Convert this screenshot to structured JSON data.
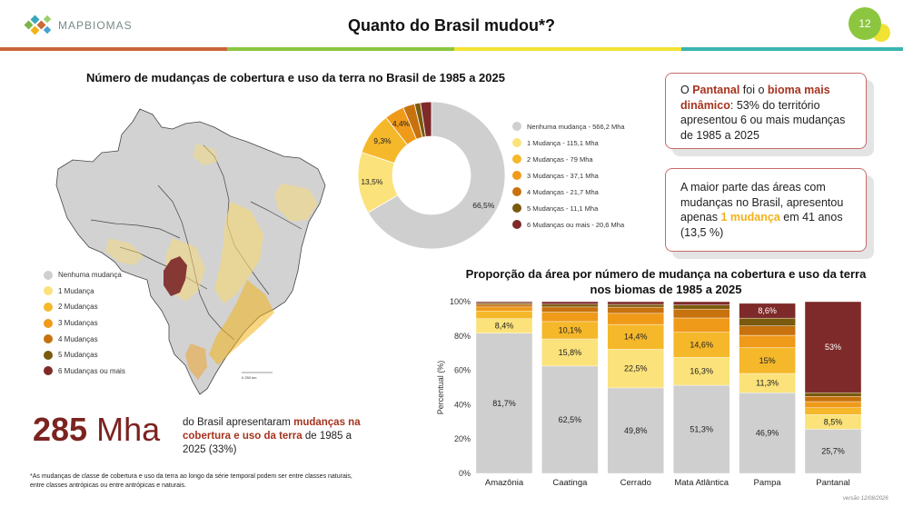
{
  "header": {
    "logo_text": "MAPBIOMAS",
    "title": "Quanto do Brasil mudou*?",
    "page_number": "12"
  },
  "colors": {
    "accent_dark_red": "#7b2320",
    "highlight_red": "#a6331e",
    "highlight_yellow": "#f2b21a",
    "category_colors": [
      "#cfcfcf",
      "#fbe27a",
      "#f5b82a",
      "#f09a1a",
      "#c7720e",
      "#7a5a0c",
      "#7e2a2a"
    ]
  },
  "map": {
    "title": "Número de mudanças de cobertura e uso da terra no Brasil de 1985 a 2025",
    "legend": [
      "Nenhuma mudança",
      "1 Mudança",
      "2 Mudanças",
      "3 Mudanças",
      "4 Mudanças",
      "5 Mudanças",
      "6 Mudanças ou mais"
    ],
    "scale_label": "0 250 km"
  },
  "highlight": {
    "number": "285",
    "unit": "Mha",
    "text_before": "do Brasil apresentaram ",
    "text_highlight": "mudanças na cobertura e uso da terra",
    "text_after": " de 1985 a 2025 (33%)"
  },
  "footnote": "*As mudanças de classe de cobertura e uso da terra ao longo da série temporal podem ser entre classes naturais, entre classes antrópicas ou entre antrópicas e naturais.",
  "callouts": {
    "c1": {
      "a": "O ",
      "b": "Pantanal",
      "c": " foi o ",
      "d": "bioma mais dinâmico",
      "e": ": 53% do território apresentou 6 ou mais mudanças de 1985 a 2025"
    },
    "c2": {
      "a": "A maior parte das áreas com mudanças no Brasil, apresentou apenas ",
      "b": "1 mudança",
      "c": " em 41 anos (13,5 %)"
    }
  },
  "chart_data": [
    {
      "type": "pie",
      "title": "",
      "categories": [
        "Nenhuma mudança",
        "1 Mudança",
        "2 Mudanças",
        "3 Mudanças",
        "4 Mudanças",
        "5 Mudanças",
        "6 Mudanças ou mais"
      ],
      "legend_labels": [
        "Nenhuma mudança - 566,2 Mha",
        "1 Mudança - 115,1 Mha",
        "2 Mudanças - 79 Mha",
        "3 Mudanças - 37,1 Mha",
        "4 Mudanças - 21,7 Mha",
        "5 Mudanças - 11,1 Mha",
        "6 Mudanças ou mais - 20,6 Mha"
      ],
      "values": [
        566.2,
        115.1,
        79,
        37.1,
        21.7,
        11.1,
        20.6
      ],
      "slice_labels": [
        "66,5%",
        "13,5%",
        "9,3%",
        "4,4%",
        "",
        "",
        ""
      ],
      "legend_position": "right"
    },
    {
      "type": "bar",
      "stacked": true,
      "title": "Proporção da área por número de mudança na cobertura e uso da terra nos biomas de 1985 a 2025",
      "ylabel": "Percentual (%)",
      "ylim": [
        0,
        100
      ],
      "yticks": [
        "0%",
        "20%",
        "40%",
        "60%",
        "80%",
        "100%"
      ],
      "categories": [
        "Amazônia",
        "Caatinga",
        "Cerrado",
        "Mata Atlântica",
        "Pampa",
        "Pantanal"
      ],
      "series": [
        {
          "name": "Nenhuma mudança",
          "values": [
            81.7,
            62.5,
            49.8,
            51.3,
            46.9,
            25.7
          ],
          "labels": [
            "81,7%",
            "62,5%",
            "49,8%",
            "51,3%",
            "46,9%",
            "25,7%"
          ]
        },
        {
          "name": "1 Mudança",
          "values": [
            8.4,
            15.8,
            22.5,
            16.3,
            11.3,
            8.5
          ],
          "labels": [
            "8,4%",
            "15,8%",
            "22,5%",
            "16,3%",
            "11,3%",
            "8,5%"
          ]
        },
        {
          "name": "2 Mudanças",
          "values": [
            4.5,
            10.1,
            14.4,
            14.6,
            15.0,
            4.0
          ],
          "labels": [
            "",
            "10,1%",
            "14,4%",
            "14,6%",
            "15%",
            ""
          ]
        },
        {
          "name": "3 Mudanças",
          "values": [
            2.3,
            5.5,
            6.5,
            8.3,
            7.2,
            3.6
          ],
          "labels": [
            "",
            "",
            "",
            "",
            "",
            ""
          ]
        },
        {
          "name": "4 Mudanças",
          "values": [
            1.5,
            3.0,
            3.6,
            5.2,
            5.5,
            3.0
          ],
          "labels": [
            "",
            "",
            "",
            "",
            "",
            ""
          ]
        },
        {
          "name": "5 Mudanças",
          "values": [
            0.8,
            1.6,
            1.6,
            2.4,
            4.5,
            2.2
          ],
          "labels": [
            "",
            "",
            "",
            "",
            "",
            ""
          ]
        },
        {
          "name": "6 Mudanças ou mais",
          "values": [
            0.8,
            1.5,
            1.6,
            1.9,
            8.6,
            53.0
          ],
          "labels": [
            "",
            "",
            "",
            "",
            "8,6%",
            "53%"
          ]
        }
      ]
    }
  ],
  "version": "versão 12/08/2026"
}
